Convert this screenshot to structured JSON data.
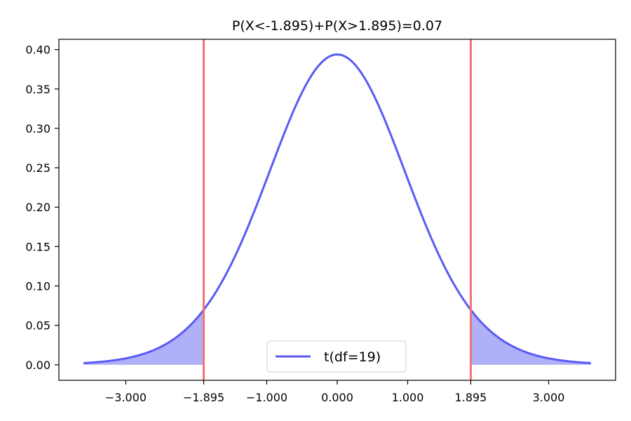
{
  "chart_data": {
    "type": "line",
    "title": "P(X<-1.895)+P(X>1.895)=0.07",
    "xlabel": "",
    "ylabel": "",
    "xlim": [
      -3.95,
      3.95
    ],
    "ylim": [
      -0.0197,
      0.413
    ],
    "x_ticks": [
      -3.0,
      -1.895,
      -1.0,
      0.0,
      1.0,
      1.895,
      3.0
    ],
    "x_tick_labels": [
      "−3.000",
      "−1.895",
      "−1.000",
      "0.000",
      "1.000",
      "1.895",
      "3.000"
    ],
    "y_ticks": [
      0.0,
      0.05,
      0.1,
      0.15,
      0.2,
      0.25,
      0.3,
      0.35,
      0.4
    ],
    "y_tick_labels": [
      "0.00",
      "0.05",
      "0.10",
      "0.15",
      "0.20",
      "0.25",
      "0.30",
      "0.35",
      "0.40"
    ],
    "grid": false,
    "legend_position": "bottom-center",
    "series": [
      {
        "name": "t(df=19)",
        "color": "#5a5af5",
        "distribution": "Student t",
        "df": 19,
        "x_range": [
          -3.6,
          3.6
        ],
        "peak": [
          0.0,
          0.393
        ]
      }
    ],
    "critical_values": [
      -1.895,
      1.895
    ],
    "critical_line_color": "#f47272",
    "tail_fill_color": "#b0b0f8",
    "tail_regions": [
      [
        -3.6,
        -1.895
      ],
      [
        1.895,
        3.6
      ]
    ],
    "tail_probability": 0.07
  }
}
